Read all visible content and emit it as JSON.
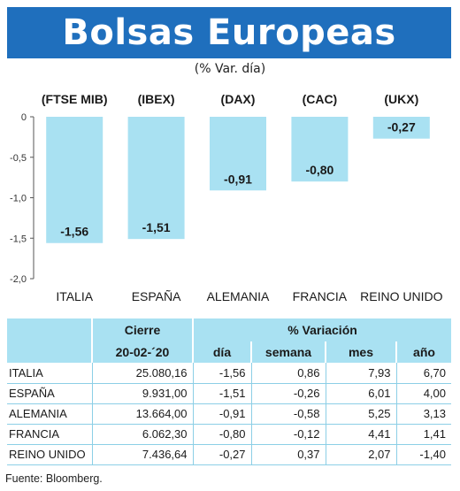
{
  "header": {
    "title": "Bolsas Europeas",
    "subtitle": "(% Var. día)"
  },
  "chart_data": {
    "type": "bar",
    "categories": [
      "ITALIA",
      "ESPAÑA",
      "ALEMANIA",
      "FRANCIA",
      "REINO UNIDO"
    ],
    "index_labels": [
      "(FTSE MIB)",
      "(IBEX)",
      "(DAX)",
      "(CAC)",
      "(UKX)"
    ],
    "values": [
      -1.56,
      -1.51,
      -0.91,
      -0.8,
      -0.27
    ],
    "value_labels": [
      "-1,56",
      "-1,51",
      "-0,91",
      "-0,80",
      "-0,27"
    ],
    "y_ticks": [
      "0",
      "-0,5",
      "-1,0",
      "-1,5",
      "-2,0"
    ],
    "ylim": [
      -2.0,
      0
    ],
    "bar_color": "#a9e1f2",
    "grid": false
  },
  "table": {
    "group_headers": {
      "close": "Cierre",
      "variation": "% Variación"
    },
    "sub_headers": {
      "date": "20-02-´20",
      "day": "día",
      "week": "semana",
      "month": "mes",
      "year": "año"
    },
    "rows": [
      {
        "name": "ITALIA",
        "close": "25.080,16",
        "day": "-1,56",
        "week": "0,86",
        "month": "7,93",
        "year": "6,70"
      },
      {
        "name": "ESPAÑA",
        "close": "9.931,00",
        "day": "-1,51",
        "week": "-0,26",
        "month": "6,01",
        "year": "4,00"
      },
      {
        "name": "ALEMANIA",
        "close": "13.664,00",
        "day": "-0,91",
        "week": "-0,58",
        "month": "5,25",
        "year": "3,13"
      },
      {
        "name": "FRANCIA",
        "close": "6.062,30",
        "day": "-0,80",
        "week": "-0,12",
        "month": "4,41",
        "year": "1,41"
      },
      {
        "name": "REINO UNIDO",
        "close": "7.436,64",
        "day": "-0,27",
        "week": "0,37",
        "month": "2,07",
        "year": "-1,40"
      }
    ]
  },
  "source": "Fuente: Bloomberg.",
  "colors": {
    "banner": "#1f6fbd",
    "accent": "#a9e1f2"
  }
}
